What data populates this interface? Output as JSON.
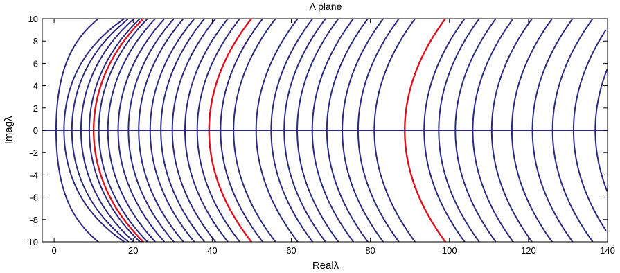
{
  "chart_data": {
    "type": "line",
    "title": "Λ plane",
    "xlabel": "Realλ",
    "ylabel": "Imagλ",
    "xlim": [
      -3,
      140
    ],
    "ylim": [
      -10,
      10
    ],
    "xticks": [
      0,
      20,
      40,
      60,
      80,
      100,
      120,
      140
    ],
    "yticks": [
      -10,
      -8,
      -6,
      -4,
      -2,
      0,
      2,
      4,
      6,
      8,
      10
    ],
    "grid": false,
    "colors": {
      "contour": "#2b2a7e",
      "highlight": "#d9131e",
      "axes": "#000000"
    },
    "series": [
      {
        "kind": "contour-level-curves",
        "color": "#2b2a7e",
        "vertex_real_values": [
          0.5,
          2.5,
          4.5,
          6.8,
          8.9,
          11.3,
          13.6,
          16.2,
          18.8,
          21.4,
          24.3,
          27.0,
          29.9,
          33.1,
          36.2,
          42.1,
          45.4,
          51.1,
          54.9,
          58.2,
          61.5,
          65.3,
          69.0,
          72.9,
          76.9,
          81.0,
          93.6,
          97.3,
          101.5,
          105.9,
          110.7,
          115.8,
          121.0,
          126.1,
          131.4,
          136.9
        ]
      },
      {
        "kind": "highlighted-level-curves",
        "color": "#d9131e",
        "vertex_real_values": [
          10.0,
          39.2,
          88.7
        ]
      },
      {
        "kind": "real-axis-line",
        "color": "#2b2a7e",
        "imag_value": 0
      }
    ]
  }
}
